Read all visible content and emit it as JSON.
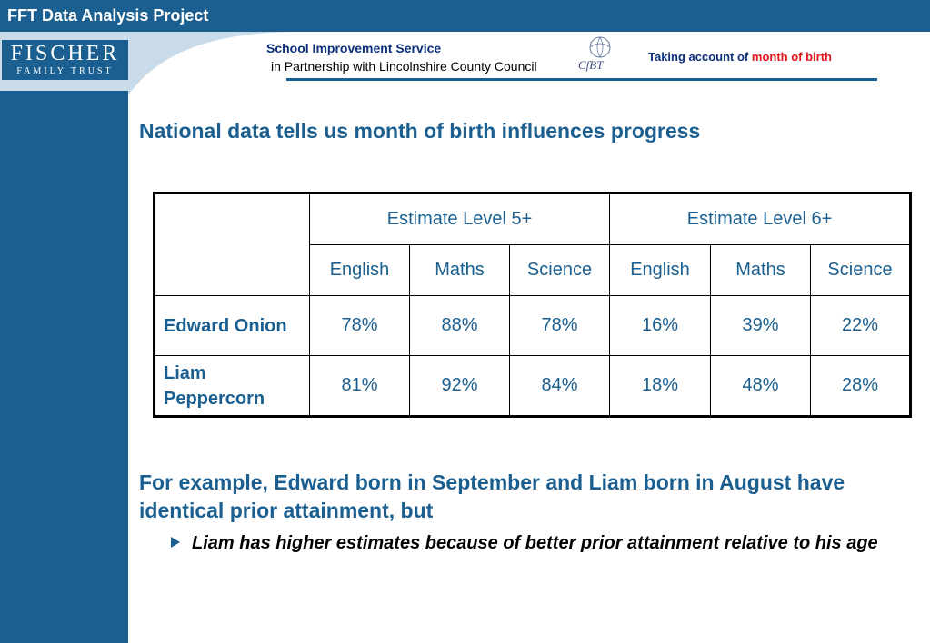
{
  "header": {
    "title": "FFT Data Analysis Project"
  },
  "logo": {
    "line1": "FISCHER",
    "line2": "FAMILY TRUST"
  },
  "partnership": {
    "service": "School Improvement Service",
    "partner": "in Partnership with Lincolnshire County Council"
  },
  "cfbt_logo": {
    "text": "CfBT"
  },
  "headline": {
    "part1": "Taking account of ",
    "part2": "month of birth"
  },
  "colors": {
    "brand_blue": "#1a5f8f",
    "navy": "#0b2f7a",
    "accent_red": "#e3161b"
  },
  "icons": {
    "bullet": "double-right-arrow",
    "sub_bullet": "right-triangle"
  },
  "content": {
    "bullet_glyph": "▶▶",
    "heading1": "National data tells us month of birth influences progress",
    "paragraph": "For example, Edward born in September and Liam born in August have identical prior attainment, but",
    "sub_point": "Liam has higher estimates because of better prior attainment relative to his age"
  },
  "table": {
    "group_headers": [
      "Estimate Level 5+",
      "Estimate Level 6+"
    ],
    "subject_headers": [
      "English",
      "Maths",
      "Science",
      "English",
      "Maths",
      "Science"
    ],
    "rows": [
      {
        "name": "Edward Onion",
        "values": [
          "78%",
          "88%",
          "78%",
          "16%",
          "39%",
          "22%"
        ]
      },
      {
        "name": "Liam Peppercorn",
        "values": [
          "81%",
          "92%",
          "84%",
          "18%",
          "48%",
          "28%"
        ]
      }
    ]
  }
}
